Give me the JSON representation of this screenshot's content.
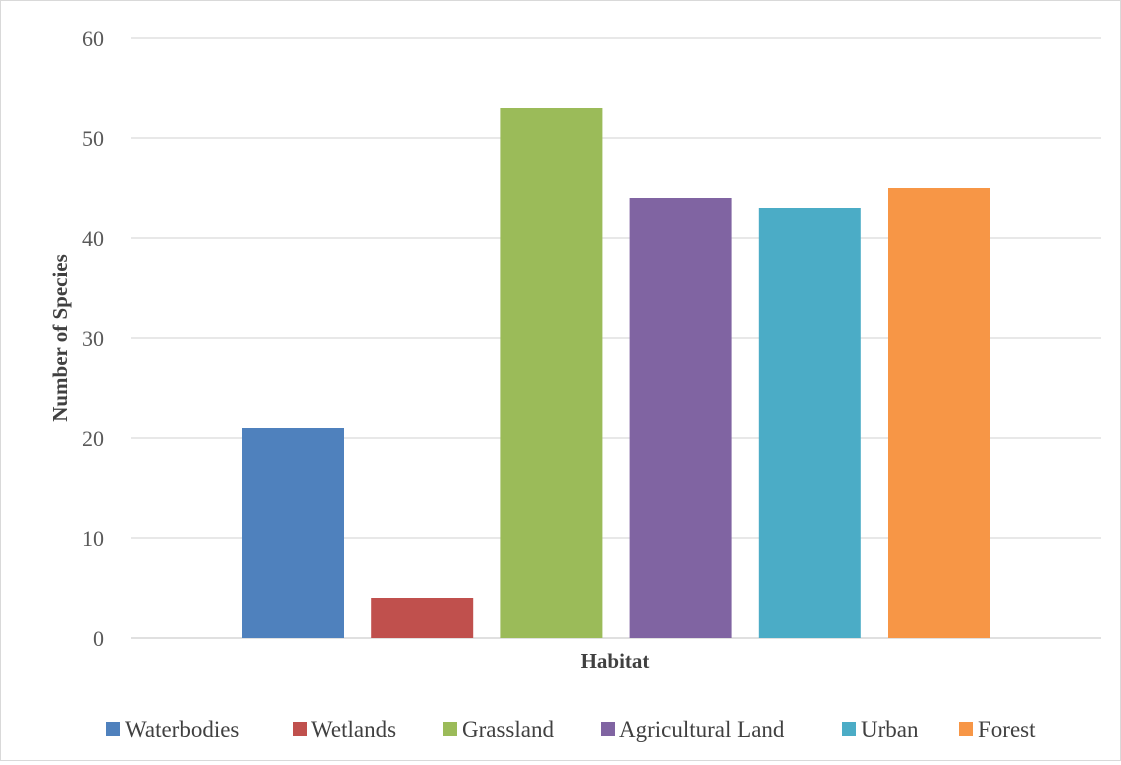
{
  "chart_data": {
    "type": "bar",
    "title": "",
    "xlabel": "Habitat",
    "ylabel": "Number of Species",
    "ylim": [
      0,
      60
    ],
    "yticks": [
      0,
      10,
      20,
      30,
      40,
      50,
      60
    ],
    "grid": true,
    "legend_position": "bottom",
    "series": [
      {
        "name": "Waterbodies",
        "value": 21,
        "color": "#4F81BD"
      },
      {
        "name": "Wetlands",
        "value": 4,
        "color": "#C0504D"
      },
      {
        "name": "Grassland",
        "value": 53,
        "color": "#9BBB59"
      },
      {
        "name": "Agricultural Land",
        "value": 44,
        "color": "#8064A2"
      },
      {
        "name": "Urban",
        "value": 43,
        "color": "#4BACC6"
      },
      {
        "name": "Forest",
        "value": 45,
        "color": "#F79646"
      }
    ]
  }
}
